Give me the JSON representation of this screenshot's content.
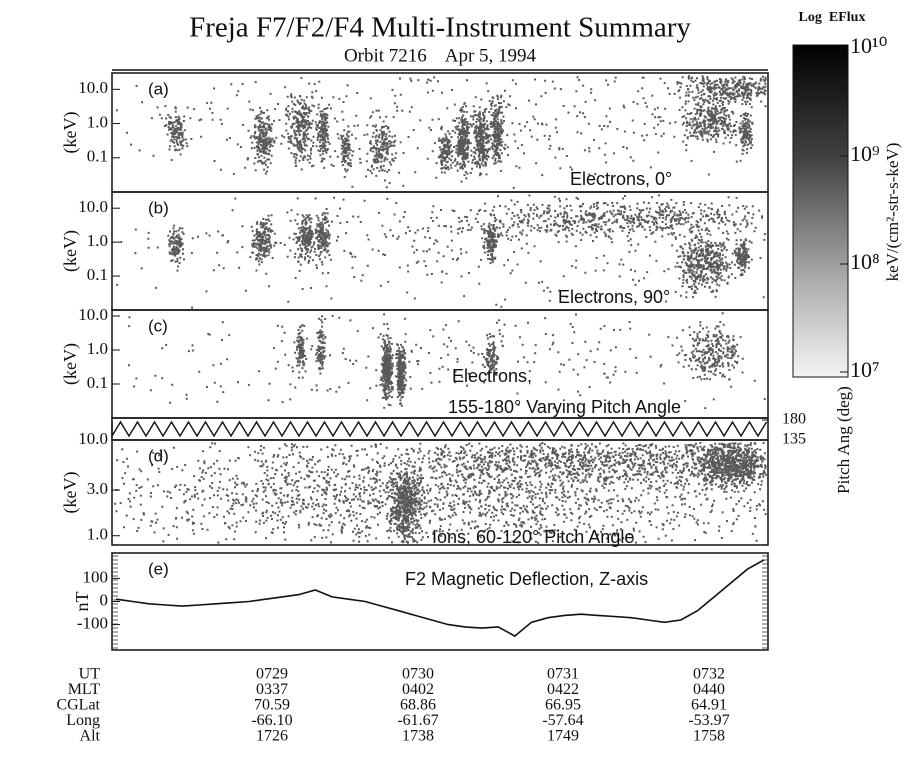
{
  "header": {
    "title": "Freja F7/F2/F4 Multi-Instrument Summary",
    "subtitle": "Orbit 7216    Apr 5, 1994"
  },
  "colorbar": {
    "title": "Log  EFlux",
    "unit": "keV/(cm²-str-s-keV)",
    "log_scale": true,
    "lim": [
      10000000,
      10000000000
    ],
    "ticks": [
      {
        "value": 10000000000,
        "label": "10¹⁰"
      },
      {
        "value": 1000000000,
        "label": "10⁹"
      },
      {
        "value": 100000000,
        "label": "10⁸"
      },
      {
        "value": 10000000,
        "label": "10⁷"
      }
    ]
  },
  "chart_data": [
    {
      "type": "spectrogram",
      "panel": "(a)",
      "label": [
        "Electrons,  0°"
      ],
      "ylabel": "(keV)",
      "log_y": true,
      "ylim": [
        0.01,
        30
      ],
      "yticks": [
        {
          "value": 10,
          "label": "10.0"
        },
        {
          "value": 1,
          "label": "1.0"
        },
        0.1
      ]
    },
    {
      "type": "spectrogram",
      "panel": "(b)",
      "label": [
        "Electrons, 90°"
      ],
      "ylabel": "(keV)",
      "log_y": true,
      "ylim": [
        0.01,
        30
      ],
      "yticks": [
        {
          "value": 10,
          "label": "10.0"
        },
        {
          "value": 1,
          "label": "1.0"
        },
        0.1
      ]
    },
    {
      "type": "spectrogram",
      "panel": "(c)",
      "label": [
        "Electrons,",
        "155-180° Varying Pitch Angle"
      ],
      "ylabel": "(keV)",
      "log_y": true,
      "ylim": [
        0.01,
        15
      ],
      "yticks": [
        {
          "value": 10,
          "label": "10.0"
        },
        {
          "value": 1,
          "label": "1.0"
        },
        0.1
      ],
      "pitch_label": "Pitch Ang (deg)",
      "pitch_ylim": [
        135,
        180
      ],
      "pitch_yticks": [
        180,
        135
      ]
    },
    {
      "type": "spectrogram",
      "panel": "(d)",
      "label": [
        "Ions, 60-120° Pitch Angle"
      ],
      "ylabel": "(keV)",
      "log_y": true,
      "ylim": [
        0.8,
        10
      ],
      "yticks": [
        {
          "value": 10,
          "label": "10.0"
        },
        {
          "value": 3,
          "label": "3.0"
        },
        {
          "value": 1,
          "label": "1.0"
        }
      ]
    },
    {
      "type": "line",
      "panel": "(e)",
      "label": [
        "F2 Magnetic Deflection, Z-axis"
      ],
      "ylabel": "nT",
      "color": "#111111",
      "ylim": [
        -210,
        210
      ],
      "yticks": [
        100,
        0,
        -100
      ],
      "values": [
        10,
        0,
        -10,
        -15,
        -20,
        -15,
        -10,
        -5,
        0,
        10,
        20,
        30,
        50,
        20,
        10,
        0,
        -20,
        -40,
        -60,
        -80,
        -100,
        -110,
        -115,
        -110,
        -150,
        -90,
        -70,
        -60,
        -55,
        -60,
        -65,
        -70,
        -80,
        -90,
        -80,
        -40,
        20,
        80,
        140,
        180
      ]
    }
  ],
  "orbit_table": {
    "rows": [
      {
        "label": "UT",
        "values": [
          "0729",
          "0730",
          "0731",
          "0732"
        ]
      },
      {
        "label": "MLT",
        "values": [
          "0337",
          "0402",
          "0422",
          "0440"
        ]
      },
      {
        "label": "CGLat",
        "values": [
          "70.59",
          "68.86",
          "66.95",
          "64.91"
        ]
      },
      {
        "label": "Long",
        "values": [
          "-66.10",
          "-61.67",
          "-57.64",
          "-53.97"
        ]
      },
      {
        "label": "Alt",
        "values": [
          "1726",
          "1738",
          "1749",
          "1758"
        ]
      }
    ]
  }
}
